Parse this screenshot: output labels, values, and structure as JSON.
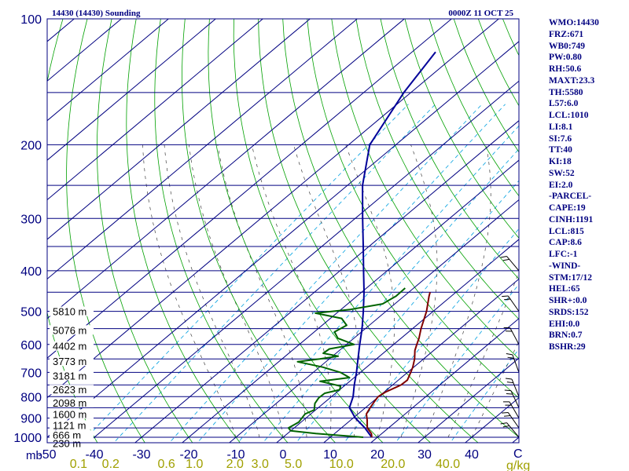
{
  "header": {
    "station": "14430 (14430) Sounding",
    "valid_time": "0000Z 11 OCT 25"
  },
  "chart_data": {
    "type": "skew-t log-p sounding",
    "pressure_axis": {
      "unit_label": "mb",
      "range": [
        1000,
        100
      ],
      "tick_labels": [
        100,
        200,
        300,
        400,
        500,
        600,
        700,
        800,
        900,
        1000
      ],
      "scale": "log"
    },
    "temperature_axis": {
      "unit_label": "C",
      "range": [
        -50,
        50
      ],
      "tick_labels": [
        -50,
        -40,
        -30,
        -20,
        -10,
        0,
        10,
        20,
        30,
        40
      ]
    },
    "mixing_ratio_labels": {
      "unit_label": "g/kg",
      "values": [
        "0.1",
        "0.2",
        "0.6",
        "1.0",
        "2.0",
        "3.0",
        "5.0",
        "10.0",
        "20.0",
        "40.0"
      ]
    },
    "height_labels": [
      {
        "p": 500,
        "label": "5810 m"
      },
      {
        "p": 554,
        "label": "5076 m"
      },
      {
        "p": 605,
        "label": "4402 m"
      },
      {
        "p": 658,
        "label": "3773 m"
      },
      {
        "p": 712,
        "label": "3181 m"
      },
      {
        "p": 769,
        "label": "2623 m"
      },
      {
        "p": 826,
        "label": "2098 m"
      },
      {
        "p": 880,
        "label": "1600 m"
      },
      {
        "p": 935,
        "label": "1121 m"
      },
      {
        "p": 988,
        "label": "666 m"
      },
      {
        "p": 1033,
        "label": "230 m"
      }
    ],
    "series": [
      {
        "kind": "temperature",
        "color": "#000099",
        "points": [
          [
            1000,
            18.8
          ],
          [
            950,
            15
          ],
          [
            900,
            10.5
          ],
          [
            850,
            6.6
          ],
          [
            800,
            4.6
          ],
          [
            750,
            1.9
          ],
          [
            700,
            -0.8
          ],
          [
            650,
            -3.9
          ],
          [
            600,
            -7.2
          ],
          [
            550,
            -10.7
          ],
          [
            500,
            -14.8
          ],
          [
            450,
            -19.5
          ],
          [
            400,
            -25
          ],
          [
            350,
            -31.2
          ],
          [
            300,
            -38.4
          ],
          [
            250,
            -46.8
          ],
          [
            200,
            -55.5
          ],
          [
            150,
            -61.5
          ],
          [
            120,
            -65
          ]
        ]
      },
      {
        "kind": "parcel",
        "color": "#800000",
        "points": [
          [
            1000,
            18.8
          ],
          [
            980,
            17.8
          ],
          [
            950,
            15.5
          ],
          [
            910,
            13.5
          ],
          [
            880,
            11.8
          ],
          [
            850,
            11
          ],
          [
            820,
            10.3
          ],
          [
            800,
            9.9
          ],
          [
            780,
            10.3
          ],
          [
            750,
            11.8
          ],
          [
            730,
            11.9
          ],
          [
            700,
            10.7
          ],
          [
            680,
            9.8
          ],
          [
            650,
            8.1
          ],
          [
            620,
            6
          ],
          [
            600,
            4.9
          ],
          [
            580,
            3.8
          ],
          [
            550,
            1.8
          ],
          [
            500,
            -1.4
          ],
          [
            460,
            -4.7
          ],
          [
            450,
            -5.5
          ]
        ]
      },
      {
        "kind": "dewpoint",
        "color": "#006400",
        "points": [
          [
            1000,
            17
          ],
          [
            980,
            6
          ],
          [
            965,
            0
          ],
          [
            950,
            -1.2
          ],
          [
            920,
            -0.5
          ],
          [
            880,
            -1.2
          ],
          [
            860,
            -0.3
          ],
          [
            830,
            -1.8
          ],
          [
            805,
            -2.4
          ],
          [
            785,
            -2.3
          ],
          [
            770,
            0
          ],
          [
            755,
            -0.7
          ],
          [
            735,
            -6.3
          ],
          [
            720,
            -1
          ],
          [
            700,
            -4.2
          ],
          [
            680,
            -9.3
          ],
          [
            660,
            -16
          ],
          [
            650,
            -12
          ],
          [
            640,
            -8.8
          ],
          [
            630,
            -12.7
          ],
          [
            615,
            -12.5
          ],
          [
            600,
            -8.4
          ],
          [
            580,
            -13.4
          ],
          [
            560,
            -15.7
          ],
          [
            540,
            -14.8
          ],
          [
            520,
            -17.6
          ],
          [
            505,
            -24.5
          ],
          [
            495,
            -18
          ],
          [
            480,
            -12.6
          ],
          [
            460,
            -11.7
          ],
          [
            440,
            -11.8
          ]
        ]
      }
    ],
    "wind_barbs": "right edge"
  },
  "indices": [
    "WMO:14430",
    "FRZ:671",
    "WB0:749",
    "PW:0.80",
    "RH:50.6",
    "MAXT:23.3",
    "TH:5580",
    "L57:6.0",
    "LCL:1010",
    "LI:8.1",
    "SI:7.6",
    "TT:40",
    "KI:18",
    "SW:52",
    "EI:2.0",
    "-PARCEL-",
    "CAPE:19",
    "CINH:1191",
    "LCL:815",
    "CAP:8.6",
    "LFC:-1",
    "-WIND-",
    "STM:17/12",
    "HEL:65",
    "SHR+:0.0",
    "SRDS:152",
    "EHI:0.0",
    "BRN:0.7",
    "BSHR:29"
  ],
  "colors": {
    "isobar": "#000080",
    "isotherm": "#000080",
    "dry_adiabat": "#00a000",
    "moist_adiabat": "#404040",
    "mixing_ratio": "#00a0e0",
    "axis_text": "#000080",
    "mixing_text": "#a0a000",
    "temperature": "#000099",
    "dewpoint": "#006400",
    "parcel": "#800000"
  }
}
